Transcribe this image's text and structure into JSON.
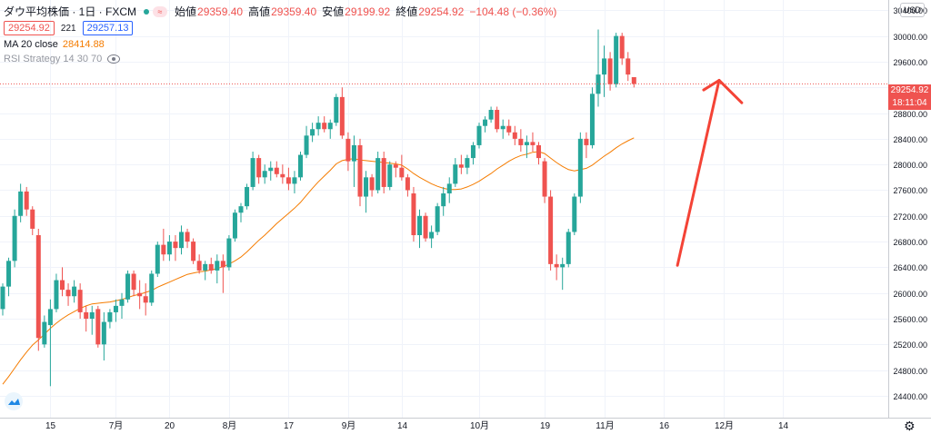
{
  "header": {
    "symbol": "ダウ平均株価 · 1日 · FXCM",
    "tag_icon": "flag-icon",
    "ohlc": [
      {
        "label": "始値",
        "value": "29359.40"
      },
      {
        "label": "高値",
        "value": "29359.40"
      },
      {
        "label": "安値",
        "value": "29199.92"
      },
      {
        "label": "終値",
        "value": "29254.92"
      },
      {
        "label": "",
        "value": "−104.48 (−0.36%)"
      }
    ],
    "bid": "29254.92",
    "spread": "221",
    "ask": "29257.13",
    "ma_label": "MA 20 close",
    "ma_value": "28414.88",
    "rsi_label": "RSI Strategy 14 30 70"
  },
  "price_axis": {
    "currency": "USD",
    "last_price": "29254.92",
    "countdown": "18:11:04"
  },
  "colors": {
    "up": "#26a69a",
    "down": "#ef5350",
    "ma": "#f57c00",
    "annotation": "#f44336",
    "grid": "#f0f3fa"
  },
  "chart_data": {
    "type": "candlestick",
    "yticks": [
      24400,
      24800,
      25200,
      25600,
      26000,
      26400,
      26800,
      27200,
      27600,
      28000,
      28400,
      28800,
      29200,
      29600,
      30000,
      30400
    ],
    "ylim": [
      24060,
      30560
    ],
    "xticks": [
      {
        "label": "15",
        "index": 8
      },
      {
        "label": "7月",
        "index": 19
      },
      {
        "label": "20",
        "index": 28
      },
      {
        "label": "8月",
        "index": 38
      },
      {
        "label": "17",
        "index": 48
      },
      {
        "label": "9月",
        "index": 58
      },
      {
        "label": "14",
        "index": 67
      },
      {
        "label": "10月",
        "index": 80
      },
      {
        "label": "19",
        "index": 91
      },
      {
        "label": "11月",
        "index": 101
      },
      {
        "label": "16",
        "index": 111
      },
      {
        "label": "12月",
        "index": 121
      },
      {
        "label": "14",
        "index": 131
      }
    ],
    "ma_last": 28414.88,
    "last_price": 29254.92,
    "candles": [
      {
        "o": 25750,
        "h": 26150,
        "l": 25650,
        "c": 26100
      },
      {
        "o": 26100,
        "h": 26550,
        "l": 25950,
        "c": 26500
      },
      {
        "o": 26500,
        "h": 27300,
        "l": 26400,
        "c": 27200
      },
      {
        "o": 27200,
        "h": 27700,
        "l": 27100,
        "c": 27580
      },
      {
        "o": 27580,
        "h": 27650,
        "l": 27200,
        "c": 27300
      },
      {
        "o": 27300,
        "h": 27350,
        "l": 26900,
        "c": 27000
      },
      {
        "o": 26900,
        "h": 27000,
        "l": 25100,
        "c": 25300
      },
      {
        "o": 25200,
        "h": 25650,
        "l": 25150,
        "c": 25550
      },
      {
        "o": 25500,
        "h": 25900,
        "l": 24550,
        "c": 25750
      },
      {
        "o": 25750,
        "h": 26300,
        "l": 25700,
        "c": 26200
      },
      {
        "o": 26200,
        "h": 26400,
        "l": 25950,
        "c": 26050
      },
      {
        "o": 26050,
        "h": 26150,
        "l": 25800,
        "c": 25950
      },
      {
        "o": 25950,
        "h": 26200,
        "l": 25850,
        "c": 26100
      },
      {
        "o": 26050,
        "h": 26150,
        "l": 25600,
        "c": 25700
      },
      {
        "o": 25700,
        "h": 25800,
        "l": 25400,
        "c": 25600
      },
      {
        "o": 25600,
        "h": 25800,
        "l": 25350,
        "c": 25700
      },
      {
        "o": 25750,
        "h": 25800,
        "l": 25150,
        "c": 25200
      },
      {
        "o": 25200,
        "h": 25700,
        "l": 24950,
        "c": 25550
      },
      {
        "o": 25550,
        "h": 25750,
        "l": 25450,
        "c": 25700
      },
      {
        "o": 25700,
        "h": 25900,
        "l": 25550,
        "c": 25800
      },
      {
        "o": 25800,
        "h": 26000,
        "l": 25600,
        "c": 25900
      },
      {
        "o": 25900,
        "h": 26350,
        "l": 25850,
        "c": 26300
      },
      {
        "o": 26300,
        "h": 26350,
        "l": 25950,
        "c": 26050
      },
      {
        "o": 26000,
        "h": 26200,
        "l": 25750,
        "c": 25950
      },
      {
        "o": 25950,
        "h": 26150,
        "l": 25650,
        "c": 25850
      },
      {
        "o": 25850,
        "h": 26350,
        "l": 25800,
        "c": 26300
      },
      {
        "o": 26300,
        "h": 26800,
        "l": 26250,
        "c": 26750
      },
      {
        "o": 26750,
        "h": 27000,
        "l": 26500,
        "c": 26600
      },
      {
        "o": 26600,
        "h": 26900,
        "l": 26500,
        "c": 26800
      },
      {
        "o": 26800,
        "h": 26900,
        "l": 26500,
        "c": 26700
      },
      {
        "o": 26700,
        "h": 27050,
        "l": 26600,
        "c": 26950
      },
      {
        "o": 26950,
        "h": 27000,
        "l": 26700,
        "c": 26800
      },
      {
        "o": 26800,
        "h": 26850,
        "l": 26450,
        "c": 26500
      },
      {
        "o": 26500,
        "h": 26600,
        "l": 26300,
        "c": 26350
      },
      {
        "o": 26350,
        "h": 26500,
        "l": 26200,
        "c": 26450
      },
      {
        "o": 26450,
        "h": 26550,
        "l": 26300,
        "c": 26350
      },
      {
        "o": 26350,
        "h": 26600,
        "l": 26150,
        "c": 26500
      },
      {
        "o": 26500,
        "h": 26600,
        "l": 26000,
        "c": 26400
      },
      {
        "o": 26400,
        "h": 26900,
        "l": 26350,
        "c": 26850
      },
      {
        "o": 26850,
        "h": 27300,
        "l": 26800,
        "c": 27250
      },
      {
        "o": 27250,
        "h": 27400,
        "l": 27100,
        "c": 27350
      },
      {
        "o": 27350,
        "h": 27700,
        "l": 27300,
        "c": 27650
      },
      {
        "o": 27650,
        "h": 28200,
        "l": 27600,
        "c": 28100
      },
      {
        "o": 28100,
        "h": 28150,
        "l": 27700,
        "c": 27800
      },
      {
        "o": 27800,
        "h": 28000,
        "l": 27700,
        "c": 27900
      },
      {
        "o": 27900,
        "h": 28050,
        "l": 27750,
        "c": 27950
      },
      {
        "o": 27950,
        "h": 28050,
        "l": 27800,
        "c": 27850
      },
      {
        "o": 27850,
        "h": 28000,
        "l": 27700,
        "c": 27800
      },
      {
        "o": 27800,
        "h": 27950,
        "l": 27600,
        "c": 27700
      },
      {
        "o": 27700,
        "h": 27900,
        "l": 27550,
        "c": 27800
      },
      {
        "o": 27800,
        "h": 28200,
        "l": 27750,
        "c": 28150
      },
      {
        "o": 28150,
        "h": 28600,
        "l": 28100,
        "c": 28450
      },
      {
        "o": 28450,
        "h": 28650,
        "l": 28350,
        "c": 28550
      },
      {
        "o": 28550,
        "h": 28750,
        "l": 28450,
        "c": 28650
      },
      {
        "o": 28650,
        "h": 28750,
        "l": 28500,
        "c": 28550
      },
      {
        "o": 28550,
        "h": 28700,
        "l": 28400,
        "c": 28650
      },
      {
        "o": 28650,
        "h": 29100,
        "l": 28600,
        "c": 29050
      },
      {
        "o": 29050,
        "h": 29200,
        "l": 28400,
        "c": 28450
      },
      {
        "o": 28400,
        "h": 28500,
        "l": 27900,
        "c": 28050
      },
      {
        "o": 28050,
        "h": 28450,
        "l": 27650,
        "c": 28300
      },
      {
        "o": 28300,
        "h": 28400,
        "l": 27350,
        "c": 27500
      },
      {
        "o": 27500,
        "h": 27900,
        "l": 27250,
        "c": 27800
      },
      {
        "o": 27800,
        "h": 27850,
        "l": 27500,
        "c": 27600
      },
      {
        "o": 27600,
        "h": 28200,
        "l": 27550,
        "c": 28100
      },
      {
        "o": 28100,
        "h": 28200,
        "l": 27550,
        "c": 27650
      },
      {
        "o": 27650,
        "h": 28050,
        "l": 27600,
        "c": 28000
      },
      {
        "o": 28000,
        "h": 28050,
        "l": 27800,
        "c": 27950
      },
      {
        "o": 27950,
        "h": 28150,
        "l": 27750,
        "c": 27800
      },
      {
        "o": 27800,
        "h": 27850,
        "l": 27500,
        "c": 27600
      },
      {
        "o": 27550,
        "h": 27650,
        "l": 26800,
        "c": 26900
      },
      {
        "o": 26900,
        "h": 27300,
        "l": 26700,
        "c": 27200
      },
      {
        "o": 27200,
        "h": 27250,
        "l": 26800,
        "c": 26850
      },
      {
        "o": 26850,
        "h": 27050,
        "l": 26700,
        "c": 26950
      },
      {
        "o": 26950,
        "h": 27400,
        "l": 26900,
        "c": 27350
      },
      {
        "o": 27350,
        "h": 27650,
        "l": 27200,
        "c": 27550
      },
      {
        "o": 27550,
        "h": 27800,
        "l": 27400,
        "c": 27700
      },
      {
        "o": 27700,
        "h": 28100,
        "l": 27650,
        "c": 28000
      },
      {
        "o": 28000,
        "h": 28150,
        "l": 27850,
        "c": 27950
      },
      {
        "o": 27950,
        "h": 28150,
        "l": 27850,
        "c": 28100
      },
      {
        "o": 28100,
        "h": 28350,
        "l": 28000,
        "c": 28300
      },
      {
        "o": 28300,
        "h": 28650,
        "l": 28250,
        "c": 28600
      },
      {
        "o": 28600,
        "h": 28750,
        "l": 28500,
        "c": 28700
      },
      {
        "o": 28700,
        "h": 28900,
        "l": 28650,
        "c": 28850
      },
      {
        "o": 28850,
        "h": 28900,
        "l": 28500,
        "c": 28550
      },
      {
        "o": 28550,
        "h": 28700,
        "l": 28400,
        "c": 28600
      },
      {
        "o": 28600,
        "h": 28700,
        "l": 28450,
        "c": 28500
      },
      {
        "o": 28500,
        "h": 28600,
        "l": 28300,
        "c": 28400
      },
      {
        "o": 28400,
        "h": 28550,
        "l": 28200,
        "c": 28300
      },
      {
        "o": 28300,
        "h": 28450,
        "l": 28100,
        "c": 28350
      },
      {
        "o": 28350,
        "h": 28500,
        "l": 28200,
        "c": 28300
      },
      {
        "o": 28300,
        "h": 28350,
        "l": 28000,
        "c": 28100
      },
      {
        "o": 28050,
        "h": 28100,
        "l": 27400,
        "c": 27500
      },
      {
        "o": 27500,
        "h": 27600,
        "l": 26350,
        "c": 26450
      },
      {
        "o": 26450,
        "h": 26600,
        "l": 26200,
        "c": 26400
      },
      {
        "o": 26400,
        "h": 26550,
        "l": 26050,
        "c": 26450
      },
      {
        "o": 26450,
        "h": 27000,
        "l": 26400,
        "c": 26950
      },
      {
        "o": 26950,
        "h": 27550,
        "l": 26900,
        "c": 27500
      },
      {
        "o": 27500,
        "h": 28500,
        "l": 27400,
        "c": 28400
      },
      {
        "o": 28400,
        "h": 28500,
        "l": 28100,
        "c": 28300
      },
      {
        "o": 28300,
        "h": 29200,
        "l": 28250,
        "c": 29100
      },
      {
        "o": 29100,
        "h": 30100,
        "l": 28900,
        "c": 29400
      },
      {
        "o": 29400,
        "h": 29850,
        "l": 29050,
        "c": 29650
      },
      {
        "o": 29650,
        "h": 29750,
        "l": 29150,
        "c": 29250
      },
      {
        "o": 29250,
        "h": 30050,
        "l": 29200,
        "c": 30000
      },
      {
        "o": 30000,
        "h": 30050,
        "l": 29550,
        "c": 29650
      },
      {
        "o": 29650,
        "h": 29750,
        "l": 29300,
        "c": 29400
      },
      {
        "o": 29359,
        "h": 29359,
        "l": 29199,
        "c": 29254
      }
    ],
    "ma": [
      24580,
      24700,
      24830,
      24960,
      25080,
      25190,
      25270,
      25360,
      25450,
      25530,
      25600,
      25660,
      25710,
      25760,
      25800,
      25830,
      25840,
      25850,
      25860,
      25880,
      25900,
      25930,
      25960,
      25980,
      26010,
      26040,
      26090,
      26130,
      26170,
      26210,
      26250,
      26290,
      26310,
      26330,
      26340,
      26360,
      26380,
      26410,
      26450,
      26500,
      26560,
      26640,
      26730,
      26820,
      26900,
      26990,
      27080,
      27160,
      27240,
      27320,
      27410,
      27520,
      27630,
      27730,
      27820,
      27910,
      28010,
      28060,
      28080,
      28090,
      28070,
      28060,
      28050,
      28040,
      28030,
      28020,
      28010,
      27990,
      27930,
      27860,
      27800,
      27750,
      27700,
      27660,
      27630,
      27610,
      27610,
      27620,
      27650,
      27690,
      27740,
      27800,
      27860,
      27930,
      27990,
      28050,
      28100,
      28140,
      28160,
      28190,
      28200,
      28170,
      28100,
      28030,
      27970,
      27920,
      27900,
      27920,
      27940,
      27990,
      28060,
      28130,
      28190,
      28260,
      28320,
      28370,
      28414.88
    ]
  }
}
